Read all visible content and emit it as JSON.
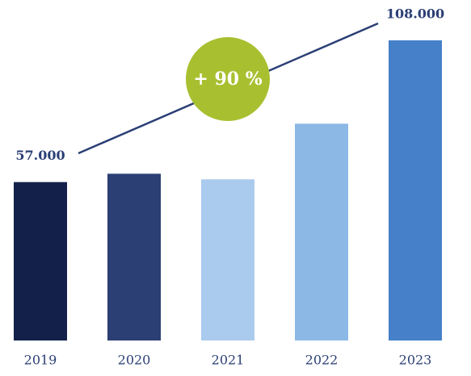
{
  "chart_data": {
    "type": "bar",
    "categories": [
      "2019",
      "2020",
      "2021",
      "2022",
      "2023"
    ],
    "values": [
      57000,
      60000,
      58000,
      78000,
      108000
    ],
    "value_labels": [
      "57.000",
      null,
      null,
      null,
      "108.000"
    ],
    "colors": [
      "#13214a",
      "#2b3f75",
      "#abcbee",
      "#8cb8e6",
      "#4580c8"
    ],
    "annotation": "+ 90 %",
    "annotation_color": "#a8c030"
  }
}
